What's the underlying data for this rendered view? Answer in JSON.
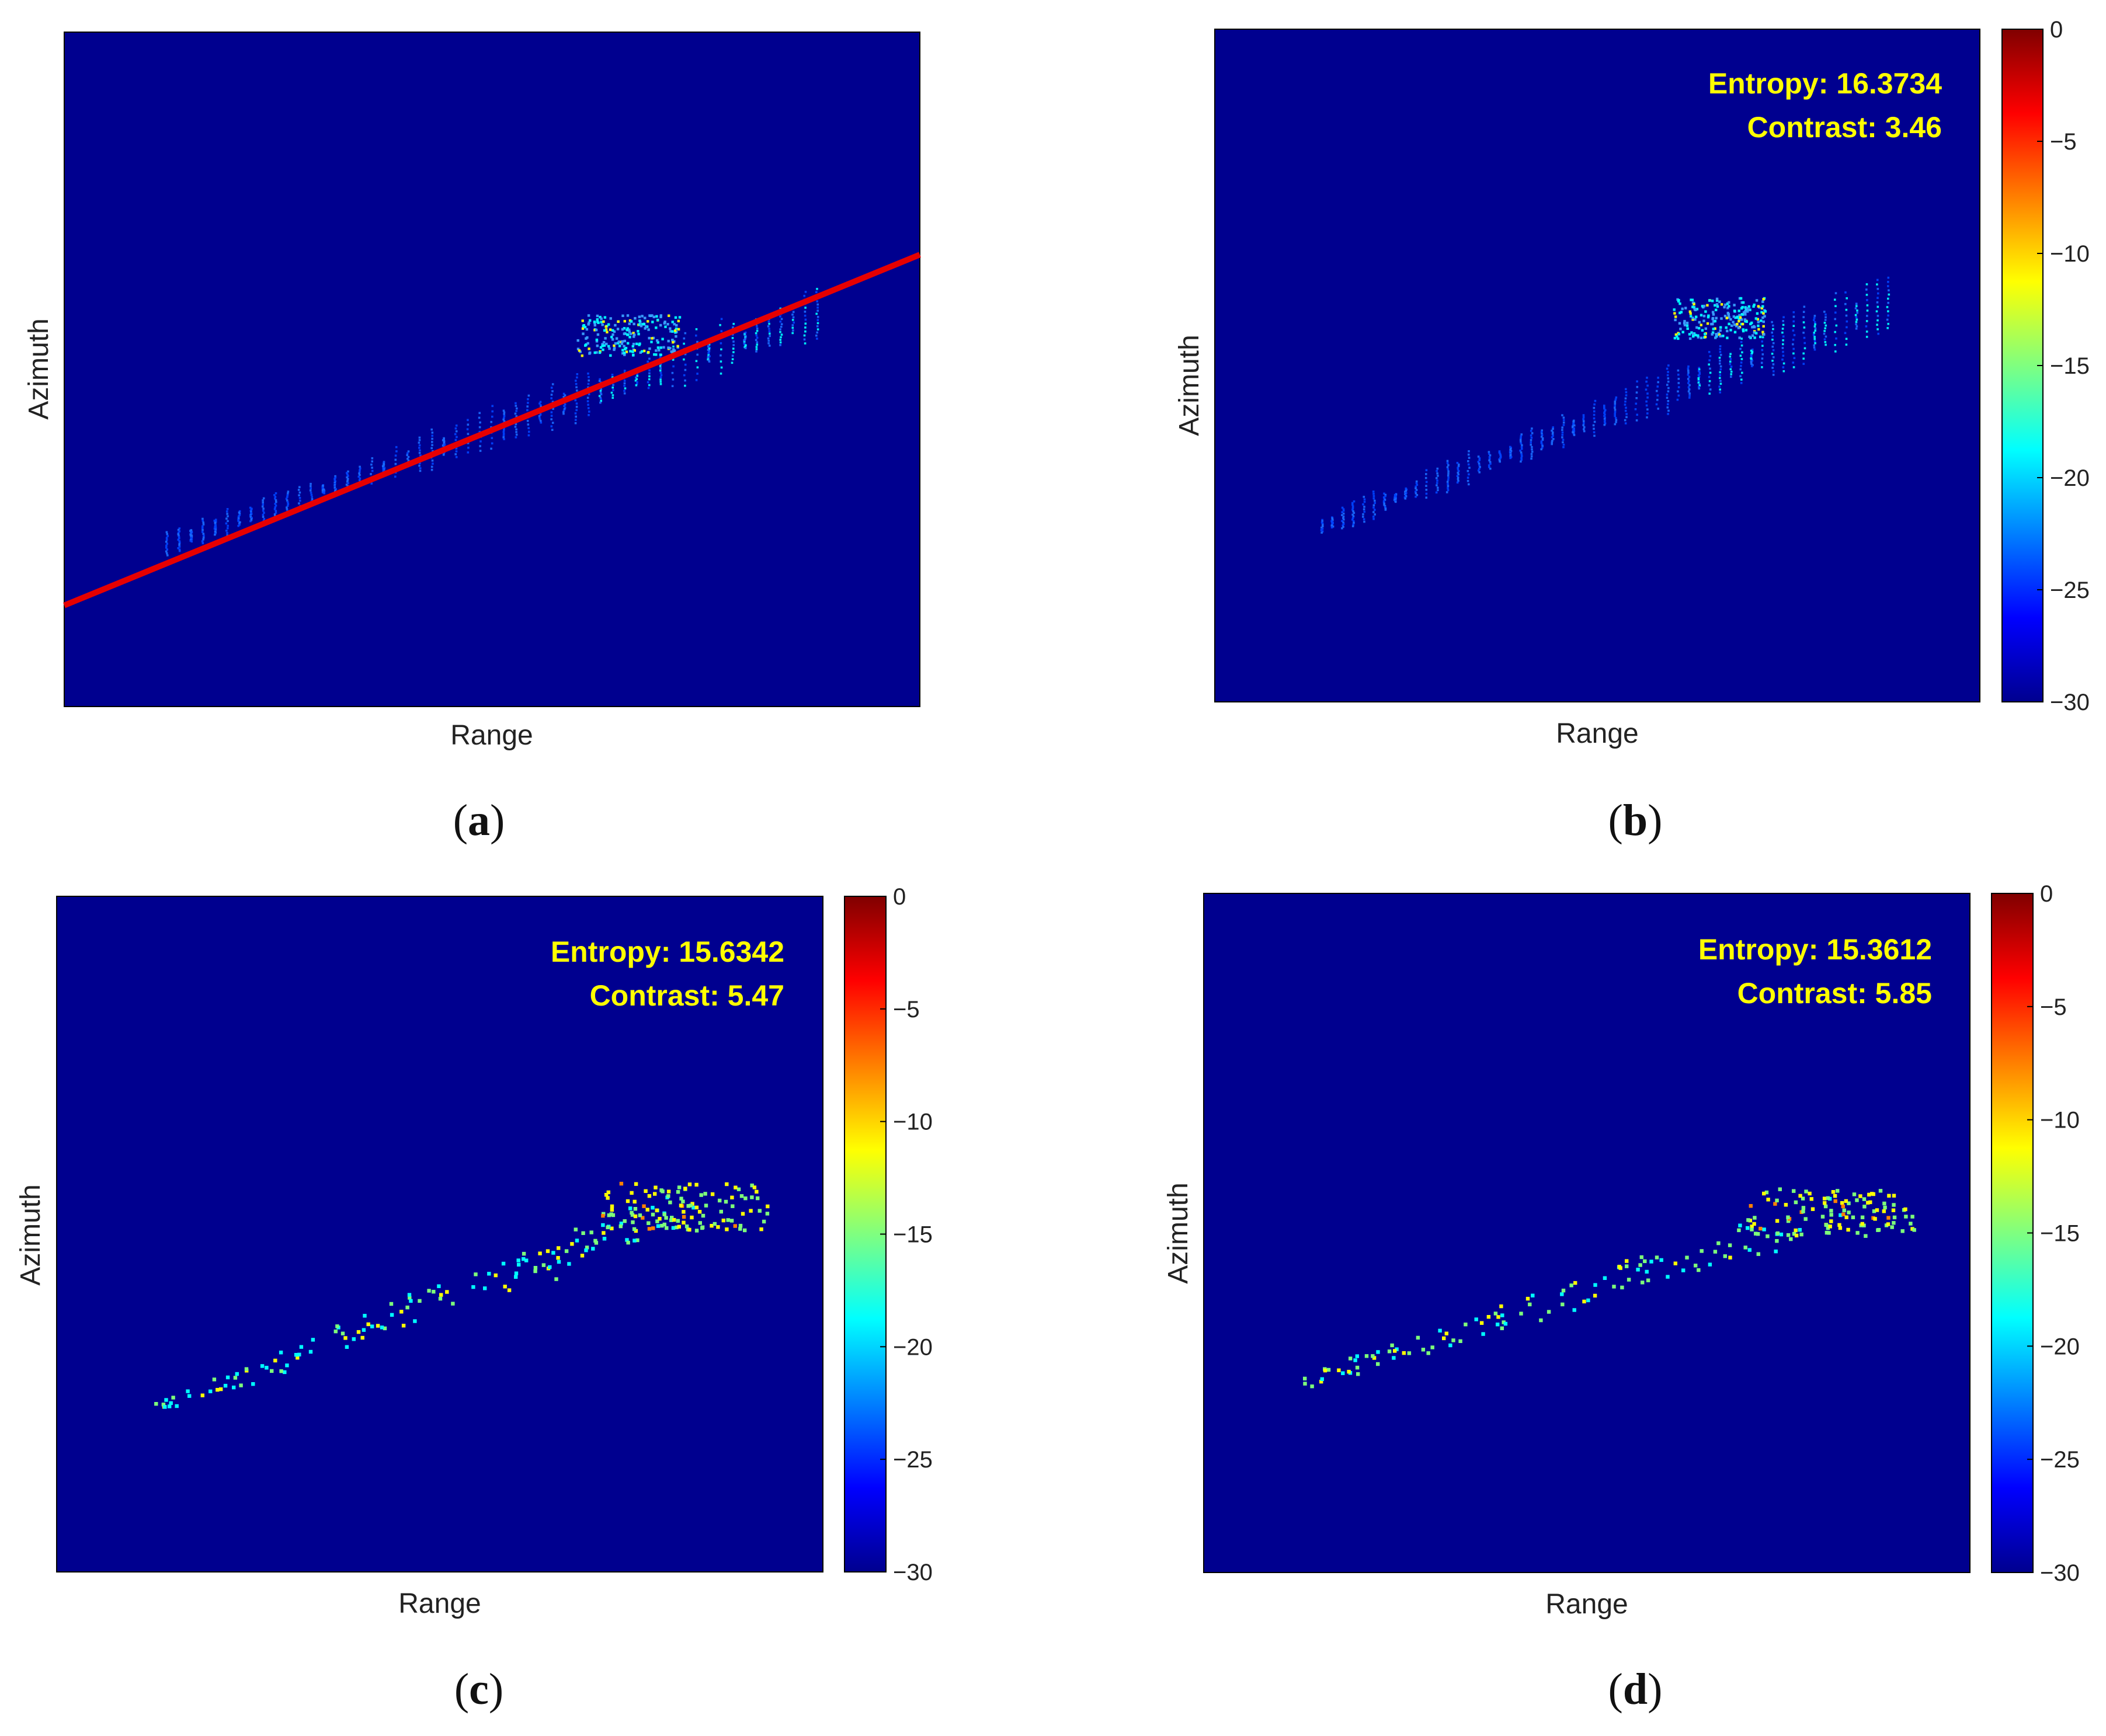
{
  "colors": {
    "background": "#00008f",
    "frame": "#000000",
    "yellow_text": "#ffff00",
    "red_line": "#e60000"
  },
  "colormap": [
    "#00008f",
    "#0000ff",
    "#00ffff",
    "#ffff00",
    "#ff0000",
    "#800000"
  ],
  "chart_data": [
    {
      "id": "a",
      "type": "heatmap",
      "caption": "(a)",
      "xlabel": "Range",
      "ylabel": "Azimuth",
      "annotation_line": {
        "color": "red",
        "x": [
          0,
          1
        ],
        "y": [
          0.15,
          0.67
        ]
      },
      "colorbar": null,
      "metrics": null
    },
    {
      "id": "b",
      "type": "heatmap",
      "caption": "(b)",
      "xlabel": "Range",
      "ylabel": "Azimuth",
      "metrics": {
        "entropy_label": "Entropy: 16.3734",
        "contrast_label": "Contrast: 3.46",
        "entropy": 16.3734,
        "contrast": 3.46
      },
      "colorbar": {
        "range": [
          -30,
          0
        ],
        "ticks": [
          "0",
          "−5",
          "−10",
          "−15",
          "−20",
          "−25",
          "−30"
        ]
      }
    },
    {
      "id": "c",
      "type": "heatmap",
      "caption": "(c)",
      "xlabel": "Range",
      "ylabel": "Azimuth",
      "metrics": {
        "entropy_label": "Entropy: 15.6342",
        "contrast_label": "Contrast: 5.47",
        "entropy": 15.6342,
        "contrast": 5.47
      },
      "colorbar": {
        "range": [
          -30,
          0
        ],
        "ticks": [
          "0",
          "−5",
          "−10",
          "−15",
          "−20",
          "−25",
          "−30"
        ]
      }
    },
    {
      "id": "d",
      "type": "heatmap",
      "caption": "(d)",
      "xlabel": "Range",
      "ylabel": "Azimuth",
      "metrics": {
        "entropy_label": "Entropy: 15.3612",
        "contrast_label": "Contrast: 5.85",
        "entropy": 15.3612,
        "contrast": 5.85
      },
      "colorbar": {
        "range": [
          -30,
          0
        ],
        "ticks": [
          "0",
          "−5",
          "−10",
          "−15",
          "−20",
          "−25",
          "−30"
        ]
      }
    }
  ]
}
